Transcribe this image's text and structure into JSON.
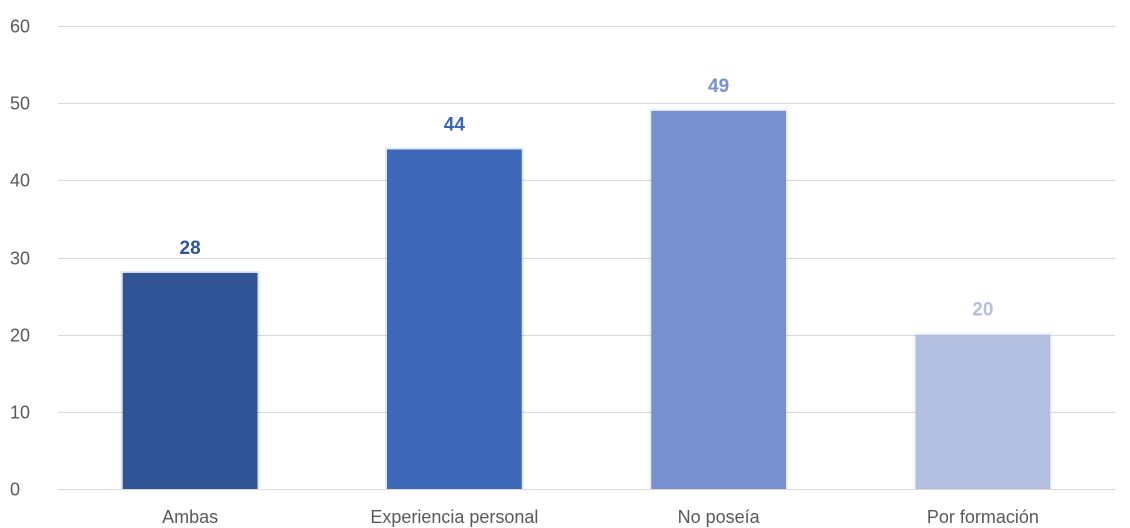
{
  "chart_data": {
    "type": "bar",
    "categories": [
      "Ambas",
      "Experiencia personal",
      "No poseía",
      "Por formación"
    ],
    "values": [
      28,
      44,
      49,
      20
    ],
    "data_labels": [
      "28",
      "44",
      "49",
      "20"
    ],
    "y_ticks": [
      "0",
      "10",
      "20",
      "30",
      "40",
      "50",
      "60"
    ],
    "ylim": [
      0,
      60
    ],
    "grid": true,
    "legend": "none",
    "bar_colors": [
      "#2f5597",
      "#3c68b7",
      "#7790cf",
      "#b3bfe0"
    ],
    "label_colors": [
      "#2f5597",
      "#3c68b7",
      "#7790cf",
      "#b3bfe0"
    ],
    "title": "",
    "xlabel": "",
    "ylabel": ""
  }
}
